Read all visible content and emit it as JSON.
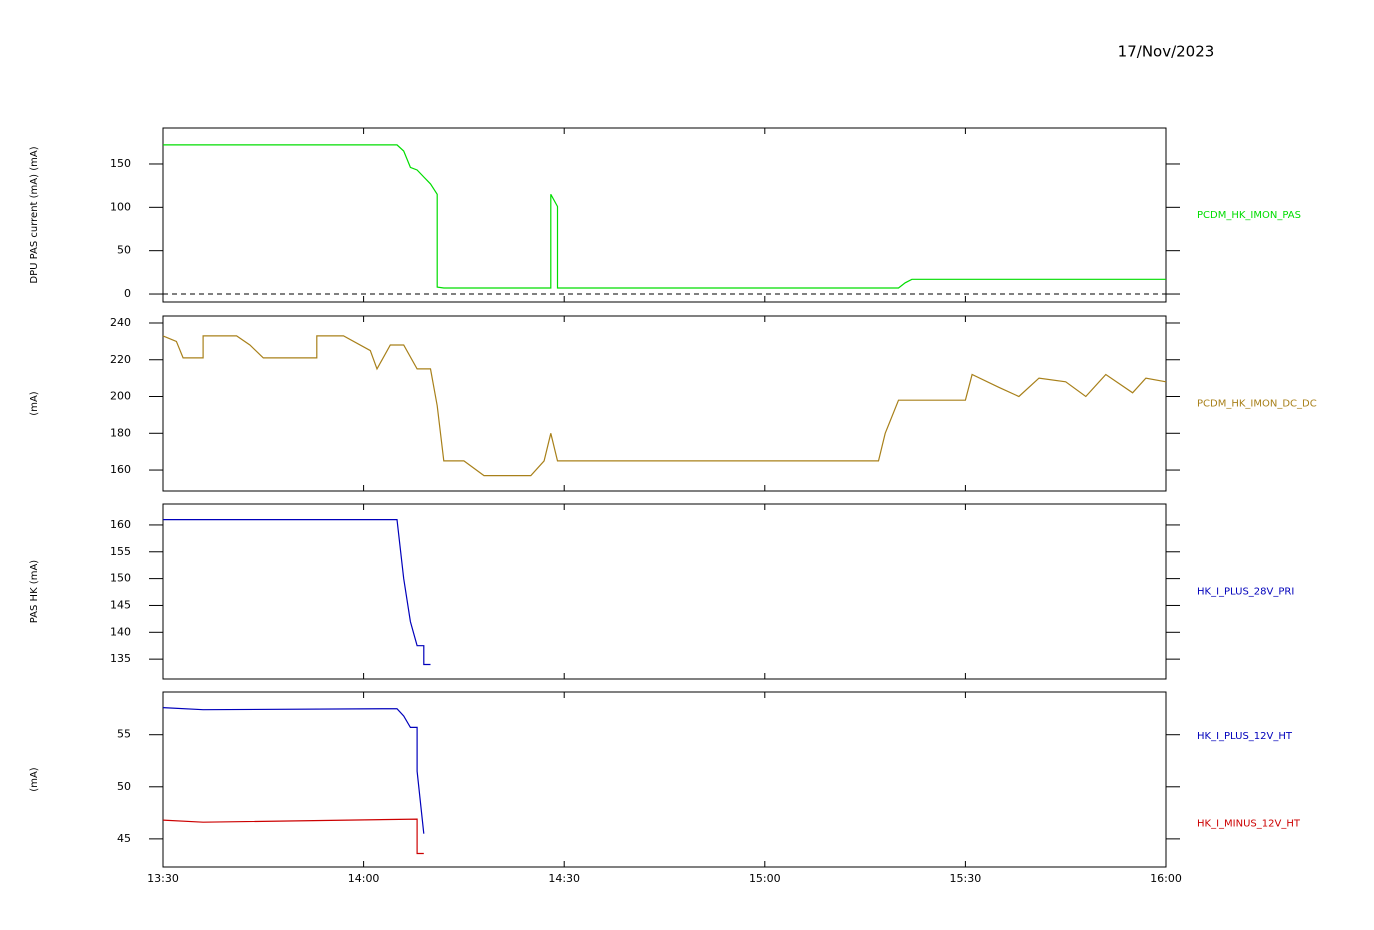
{
  "date": "17/Nov/2023",
  "chart_data": [
    {
      "type": "line",
      "ylabel": "DPU PAS current (mA)  (mA)",
      "zero_line": true,
      "xlim": [
        "13:30",
        "16:00"
      ],
      "xticks": [
        "13:30",
        "14:00",
        "14:30",
        "15:00",
        "15:30",
        "16:00"
      ],
      "ylim": [
        -9.2,
        191.5
      ],
      "yticks": [
        0,
        50,
        100,
        150
      ],
      "series": [
        {
          "name": "PCDM_HK_IMON_PAS",
          "color": "#00dd00",
          "x": [
            "13:30",
            "14:05",
            "14:06",
            "14:07",
            "14:08",
            "14:09",
            "14:10",
            "14:11",
            "14:11",
            "14:12",
            "14:28",
            "14:28",
            "14:29",
            "14:29",
            "15:20",
            "15:21",
            "15:22",
            "16:00"
          ],
          "values": [
            172,
            172,
            165,
            146,
            143,
            135,
            127,
            115,
            8,
            7,
            7,
            115,
            101,
            7,
            7,
            13,
            17,
            17
          ]
        }
      ]
    },
    {
      "type": "line",
      "ylabel": "(mA)",
      "xlim": [
        "13:30",
        "16:00"
      ],
      "xticks": [
        "13:30",
        "14:00",
        "14:30",
        "15:00",
        "15:30",
        "16:00"
      ],
      "ylim": [
        148.6,
        243.8
      ],
      "yticks": [
        160,
        180,
        200,
        220,
        240
      ],
      "series": [
        {
          "name": "PCDM_HK_IMON_DC_DC",
          "color": "#a8801a",
          "x": [
            "13:30",
            "13:32",
            "13:33",
            "13:36",
            "13:36",
            "13:41",
            "13:43",
            "13:45",
            "13:53",
            "13:53",
            "13:57",
            "14:01",
            "14:02",
            "14:04",
            "14:06",
            "14:08",
            "14:10",
            "14:11",
            "14:12",
            "14:15",
            "14:18",
            "14:25",
            "14:27",
            "14:28",
            "14:29",
            "15:17",
            "15:18",
            "15:20",
            "15:30",
            "15:31",
            "15:35",
            "15:38",
            "15:41",
            "15:45",
            "15:48",
            "15:51",
            "15:55",
            "15:57",
            "16:00"
          ],
          "values": [
            233,
            230,
            221,
            221,
            233,
            233,
            228,
            221,
            221,
            233,
            233,
            225,
            215,
            228,
            228,
            215,
            215,
            195,
            165,
            165,
            157,
            157,
            165,
            180,
            165,
            165,
            180,
            198,
            198,
            212,
            205,
            200,
            210,
            208,
            200,
            212,
            202,
            210,
            208
          ]
        }
      ]
    },
    {
      "type": "line",
      "ylabel": "PAS HK  (mA)",
      "xlim": [
        "13:30",
        "16:00"
      ],
      "xticks": [
        "13:30",
        "14:00",
        "14:30",
        "15:00",
        "15:30",
        "16:00"
      ],
      "ylim": [
        131.3,
        163.9
      ],
      "yticks": [
        135,
        140,
        145,
        150,
        155,
        160
      ],
      "series": [
        {
          "name": "HK_I_PLUS_28V_PRI",
          "color": "#0000bb",
          "x": [
            "13:30",
            "14:05",
            "14:06",
            "14:07",
            "14:08",
            "14:09",
            "14:09",
            "14:10"
          ],
          "values": [
            161,
            161,
            150,
            142,
            137.5,
            137.5,
            134,
            134
          ]
        }
      ]
    },
    {
      "type": "line",
      "ylabel": "(mA)",
      "xlim": [
        "13:30",
        "16:00"
      ],
      "xticks": [
        "13:30",
        "14:00",
        "14:30",
        "15:00",
        "15:30",
        "16:00"
      ],
      "ylim": [
        42.3,
        59.1
      ],
      "yticks": [
        45,
        50,
        55
      ],
      "series": [
        {
          "name": "HK_I_PLUS_12V_HT",
          "color": "#0000bb",
          "x": [
            "13:30",
            "13:36",
            "14:05",
            "14:06",
            "14:07",
            "14:08",
            "14:08",
            "14:09"
          ],
          "values": [
            57.6,
            57.4,
            57.5,
            56.8,
            55.7,
            55.7,
            51.5,
            45.5
          ]
        },
        {
          "name": "HK_I_MINUS_12V_HT",
          "color": "#cc0000",
          "x": [
            "13:30",
            "13:36",
            "14:08",
            "14:08",
            "14:09"
          ],
          "values": [
            46.8,
            46.6,
            46.9,
            43.6,
            43.6
          ]
        }
      ]
    }
  ]
}
